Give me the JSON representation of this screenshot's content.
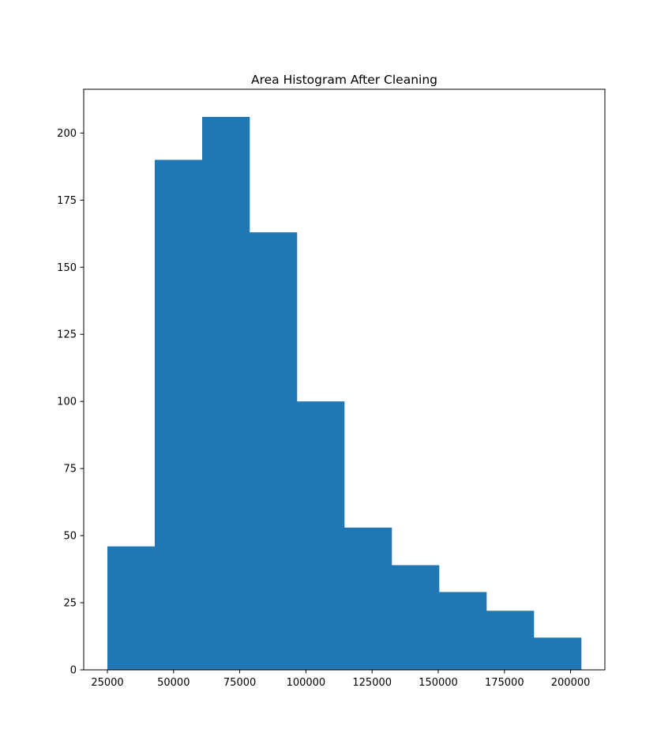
{
  "chart_data": {
    "type": "bar",
    "subtype": "histogram",
    "title": "Area Histogram After Cleaning",
    "xlabel": "",
    "ylabel": "",
    "bin_edges": [
      25000,
      42900,
      60800,
      78700,
      96600,
      114500,
      132400,
      150300,
      168200,
      186100,
      204000
    ],
    "values": [
      46,
      190,
      206,
      163,
      100,
      53,
      39,
      29,
      22,
      12
    ],
    "xlim": [
      16050,
      212950
    ],
    "ylim": [
      0,
      216.3
    ],
    "x_ticks": [
      25000,
      50000,
      75000,
      100000,
      125000,
      150000,
      175000,
      200000
    ],
    "x_tick_labels": [
      "25000",
      "50000",
      "75000",
      "100000",
      "125000",
      "150000",
      "175000",
      "200000"
    ],
    "y_ticks": [
      0,
      25,
      50,
      75,
      100,
      125,
      150,
      175,
      200
    ],
    "y_tick_labels": [
      "0",
      "25",
      "50",
      "75",
      "100",
      "125",
      "150",
      "175",
      "200"
    ],
    "grid": false,
    "legend": "none",
    "bar_color": "#1f77b4"
  }
}
